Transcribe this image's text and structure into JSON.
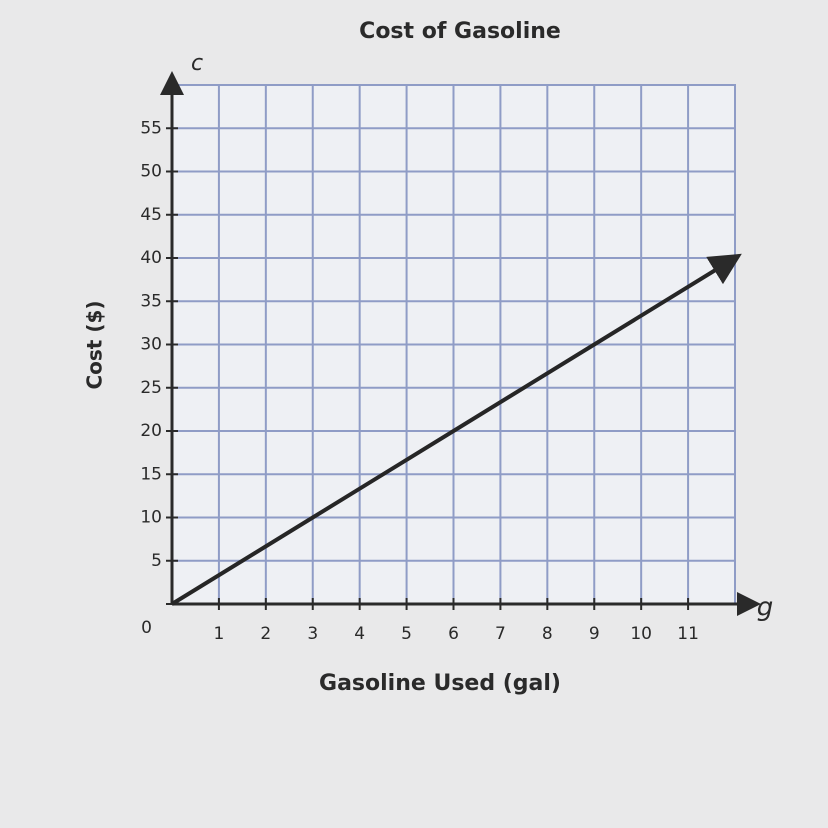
{
  "chart_data": {
    "type": "line",
    "title": "Cost of Gasoline",
    "x_label": "Gasoline Used (gal)",
    "y_label": "Cost ($)",
    "x_variable": "g",
    "y_variable": "c",
    "x": [
      0,
      3,
      6,
      9,
      12
    ],
    "values": [
      0,
      10,
      20,
      30,
      40
    ],
    "color": "#262626",
    "xlim": [
      0,
      12
    ],
    "xticks": [
      1,
      2,
      3,
      4,
      5,
      6,
      7,
      8,
      9,
      10,
      11
    ],
    "ylim": [
      0,
      60
    ],
    "yticks": [
      0,
      5,
      10,
      15,
      20,
      25,
      30,
      35,
      40,
      45,
      50,
      55
    ],
    "grid": true
  }
}
